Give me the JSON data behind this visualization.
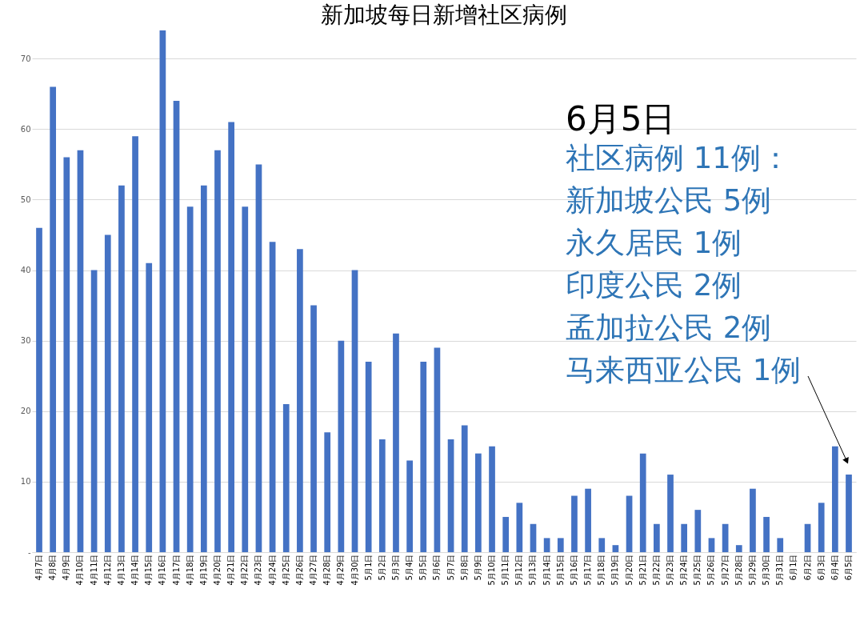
{
  "chart_data": {
    "type": "bar",
    "title": "新加坡每日新增社区病例",
    "categories": [
      "4月7日",
      "4月8日",
      "4月9日",
      "4月10日",
      "4月11日",
      "4月12日",
      "4月13日",
      "4月14日",
      "4月15日",
      "4月16日",
      "4月17日",
      "4月18日",
      "4月19日",
      "4月20日",
      "4月21日",
      "4月22日",
      "4月23日",
      "4月24日",
      "4月25日",
      "4月26日",
      "4月27日",
      "4月28日",
      "4月29日",
      "4月30日",
      "5月1日",
      "5月2日",
      "5月3日",
      "5月4日",
      "5月5日",
      "5月6日",
      "5月7日",
      "5月8日",
      "5月9日",
      "5月10日",
      "5月11日",
      "5月12日",
      "5月13日",
      "5月14日",
      "5月15日",
      "5月16日",
      "5月17日",
      "5月18日",
      "5月19日",
      "5月20日",
      "5月21日",
      "5月22日",
      "5月23日",
      "5月24日",
      "5月25日",
      "5月26日",
      "5月27日",
      "5月28日",
      "5月29日",
      "5月30日",
      "5月31日",
      "6月1日",
      "6月2日",
      "6月3日",
      "6月4日",
      "6月5日"
    ],
    "values": [
      46,
      66,
      56,
      57,
      40,
      45,
      52,
      59,
      41,
      74,
      64,
      49,
      52,
      57,
      61,
      49,
      55,
      44,
      21,
      43,
      35,
      17,
      30,
      40,
      27,
      16,
      31,
      13,
      27,
      29,
      16,
      18,
      14,
      15,
      5,
      7,
      4,
      2,
      2,
      8,
      9,
      2,
      1,
      8,
      14,
      4,
      11,
      4,
      6,
      2,
      4,
      1,
      9,
      5,
      2,
      0,
      4,
      7,
      15,
      11
    ],
    "color": "#4472c4",
    "ylim": [
      0,
      74
    ],
    "yticks": [
      {
        "value": 0,
        "label": "-"
      },
      10,
      20,
      30,
      40,
      50,
      60,
      70
    ],
    "grid": "y",
    "annotations": [
      "6月5日",
      "社区病例 11例：",
      "新加坡公民 5例",
      "永久居民 1例",
      "印度公民 2例",
      "孟加拉公民 2例",
      "马来西亚公民 1例"
    ]
  }
}
